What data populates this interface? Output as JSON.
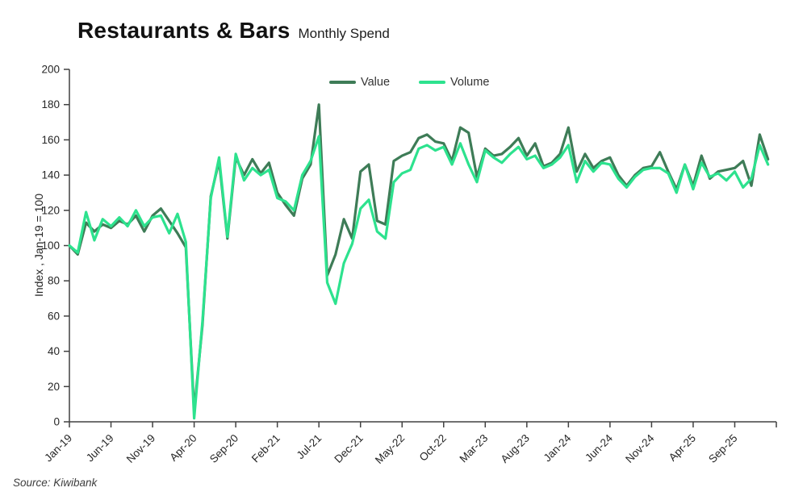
{
  "title": {
    "main": "Restaurants & Bars",
    "subtitle": "Monthly Spend"
  },
  "source": "Source: Kiwibank",
  "legend": {
    "value_label": "Value",
    "volume_label": "Volume"
  },
  "chart_data": {
    "type": "line",
    "title": "Restaurants & Bars Monthly Spend",
    "xlabel": "",
    "ylabel": "Index , Jan-19 = 100",
    "ylim": [
      0,
      200
    ],
    "y_tick_step": 20,
    "grid": false,
    "legend_position": "top-center",
    "x_start_month": "Jan-19",
    "x_interval": "monthly",
    "x_domain_months": 85,
    "x_tick_every": 5,
    "x_tick_labels": [
      "Jan-19",
      "Jun-19",
      "Nov-19",
      "Apr-20",
      "Sep-20",
      "Feb-21",
      "Jul-21",
      "Dec-21",
      "May-22",
      "Oct-22",
      "Mar-23",
      "Aug-23",
      "Jan-24",
      "Jun-24",
      "Nov-24",
      "Apr-25",
      "Sep-25"
    ],
    "axis_color": "#404040",
    "series": [
      {
        "name": "Value",
        "color": "#3e7c57",
        "values": [
          100,
          95,
          113,
          108,
          112,
          110,
          114,
          112,
          117,
          108,
          117,
          121,
          114,
          107,
          99,
          6,
          55,
          128,
          148,
          104,
          150,
          140,
          149,
          141,
          147,
          130,
          123,
          117,
          138,
          146,
          180,
          83,
          95,
          115,
          104,
          142,
          146,
          114,
          112,
          148,
          151,
          153,
          161,
          163,
          159,
          158,
          148,
          167,
          164,
          139,
          155,
          151,
          152,
          156,
          161,
          151,
          158,
          145,
          147,
          152,
          167,
          142,
          152,
          144,
          148,
          150,
          140,
          134,
          140,
          144,
          145,
          153,
          142,
          132,
          146,
          134,
          151,
          138,
          142,
          143,
          144,
          148,
          134,
          163,
          149
        ]
      },
      {
        "name": "Volume",
        "color": "#2de28e",
        "values": [
          100,
          96,
          119,
          103,
          115,
          111,
          116,
          111,
          120,
          111,
          116,
          117,
          107,
          118,
          102,
          2,
          57,
          127,
          150,
          105,
          152,
          137,
          144,
          140,
          143,
          127,
          125,
          120,
          140,
          148,
          162,
          79,
          67,
          90,
          101,
          121,
          126,
          108,
          104,
          136,
          141,
          143,
          155,
          157,
          154,
          156,
          146,
          158,
          146,
          136,
          154,
          150,
          147,
          152,
          156,
          149,
          151,
          144,
          146,
          150,
          157,
          136,
          148,
          142,
          147,
          146,
          138,
          133,
          139,
          143,
          144,
          144,
          141,
          130,
          146,
          132,
          147,
          139,
          141,
          137,
          142,
          133,
          138,
          157,
          146
        ]
      }
    ]
  }
}
